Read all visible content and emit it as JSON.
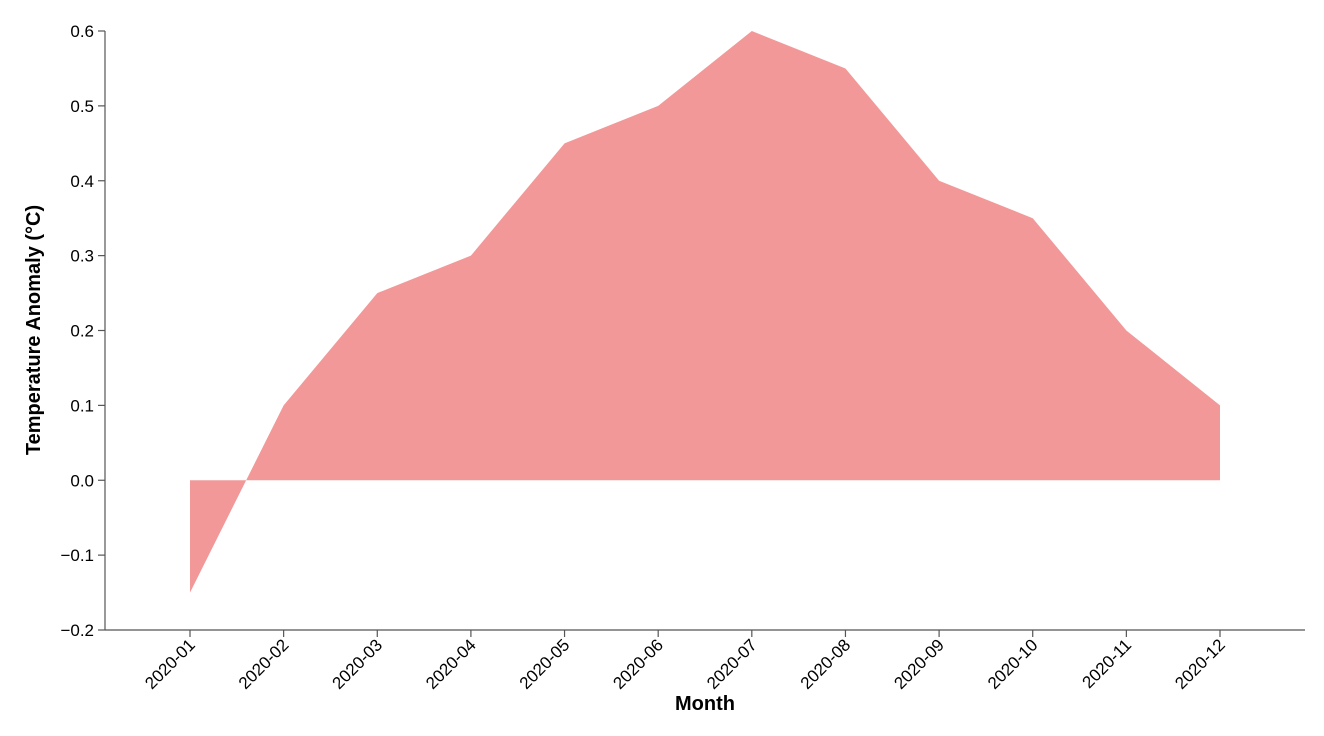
{
  "chart_data": {
    "type": "area",
    "title": "",
    "xlabel": "Month",
    "ylabel": "Temperature Anomaly (°C)",
    "categories": [
      "2020-01",
      "2020-02",
      "2020-03",
      "2020-04",
      "2020-05",
      "2020-06",
      "2020-07",
      "2020-08",
      "2020-09",
      "2020-10",
      "2020-11",
      "2020-12"
    ],
    "values": [
      -0.15,
      0.1,
      0.25,
      0.3,
      0.45,
      0.5,
      0.6,
      0.55,
      0.4,
      0.35,
      0.2,
      0.1
    ],
    "ylim": [
      -0.2,
      0.6
    ],
    "yticks": [
      "−0.2",
      "−0.1",
      "0.0",
      "0.1",
      "0.2",
      "0.3",
      "0.4",
      "0.5",
      "0.6"
    ],
    "grid": false,
    "fill_color": "#f29898"
  }
}
